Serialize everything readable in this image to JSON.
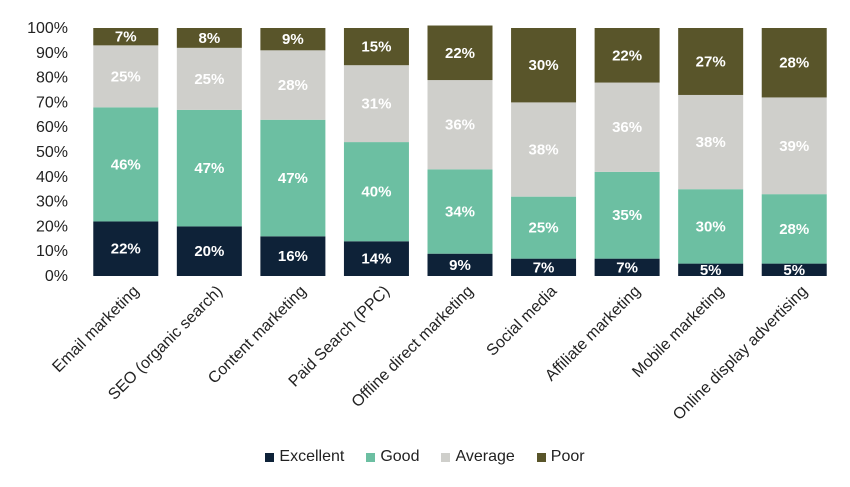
{
  "chart_data": {
    "type": "bar",
    "stacked": true,
    "categories": [
      "Email marketing",
      "SEO (organic search)",
      "Content marketing",
      "Paid Search (PPC)",
      "Offline direct marketing",
      "Social media",
      "Affiliate marketing",
      "Mobile marketing",
      "Online display advertising"
    ],
    "series": [
      {
        "name": "Excellent",
        "color": "#0e2238",
        "label_color": "#ffffff",
        "values": [
          22,
          20,
          16,
          14,
          9,
          7,
          7,
          5,
          5
        ]
      },
      {
        "name": "Good",
        "color": "#6cbfa2",
        "label_color": "#ffffff",
        "values": [
          46,
          47,
          47,
          40,
          34,
          25,
          35,
          30,
          28
        ]
      },
      {
        "name": "Average",
        "color": "#cfcfcb",
        "label_color": "#ffffff",
        "values": [
          25,
          25,
          28,
          31,
          36,
          38,
          36,
          38,
          39
        ]
      },
      {
        "name": "Poor",
        "color": "#59552a",
        "label_color": "#ffffff",
        "values": [
          7,
          8,
          9,
          15,
          22,
          30,
          22,
          27,
          28
        ]
      }
    ],
    "value_suffix": "%",
    "yticks": [
      "0%",
      "10%",
      "20%",
      "30%",
      "40%",
      "50%",
      "60%",
      "70%",
      "80%",
      "90%",
      "100%"
    ],
    "ylim": [
      0,
      100
    ],
    "legend_position": "bottom",
    "grid": false
  }
}
